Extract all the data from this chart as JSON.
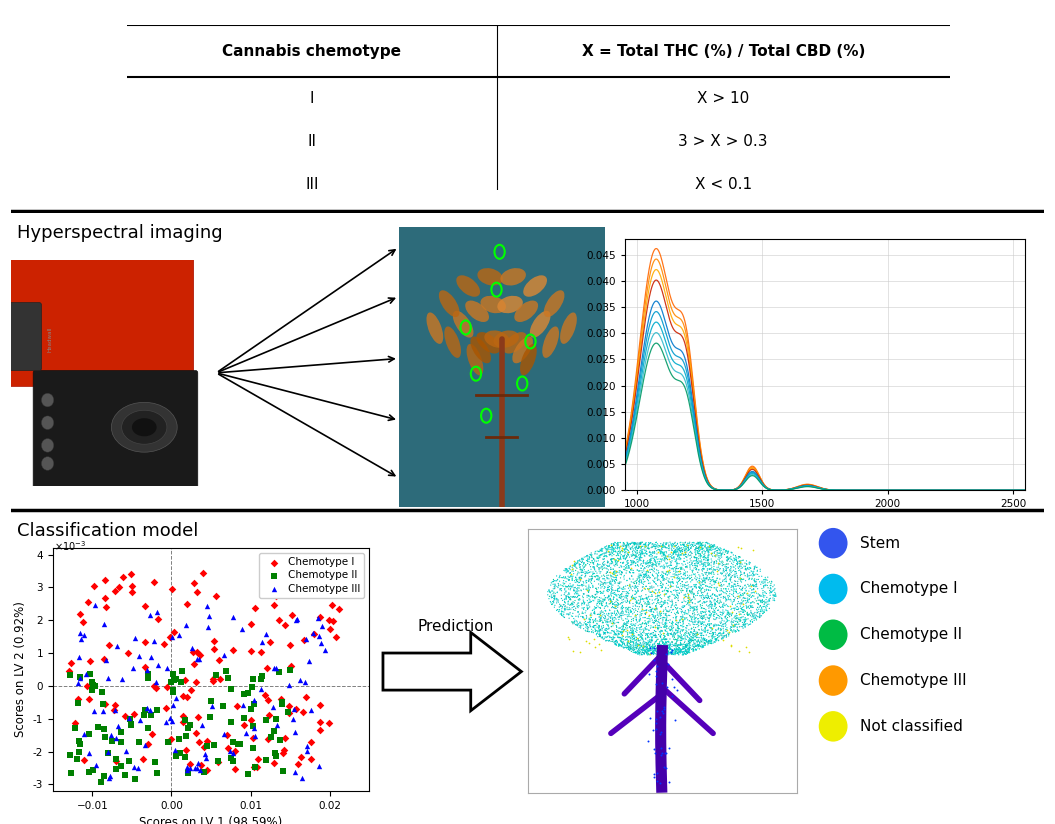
{
  "table": {
    "col1_header": "Cannabis chemotype",
    "col2_header": "X = Total THC (%) / Total CBD (%)",
    "rows": [
      [
        "I",
        "X > 10"
      ],
      [
        "II",
        "3 > X > 0.3"
      ],
      [
        "III",
        "X < 0.1"
      ]
    ]
  },
  "section2_label": "Hyperspectral imaging",
  "section3_label": "Classification model",
  "scatter": {
    "xlabel": "Scores on LV 1 (98.59%)",
    "ylabel": "Scores on LV 2 (0.92%)",
    "xlim": [
      -0.015,
      0.025
    ],
    "ylim": [
      -0.0032,
      0.0042
    ],
    "xticks": [
      -0.01,
      0,
      0.01,
      0.02
    ],
    "yticks": [
      -0.003,
      -0.002,
      -0.001,
      0,
      0.001,
      0.002,
      0.003,
      0.004
    ]
  },
  "right_legend": {
    "items": [
      "Stem",
      "Chemotype I",
      "Chemotype II",
      "Chemotype III",
      "Not classified"
    ],
    "colors": [
      "#3355ee",
      "#00bbee",
      "#00bb44",
      "#ff9900",
      "#eeee00"
    ]
  },
  "prediction_label": "Prediction",
  "bg_color": "#ffffff",
  "spec_colors": [
    "#FF6600",
    "#FF8800",
    "#FFAA00",
    "#CC2200",
    "#0077CC",
    "#0099CC",
    "#00AACC",
    "#33BBCC",
    "#009966"
  ],
  "spec_scales": [
    1.15,
    1.1,
    1.05,
    1.0,
    0.9,
    0.85,
    0.8,
    0.75,
    0.7
  ]
}
